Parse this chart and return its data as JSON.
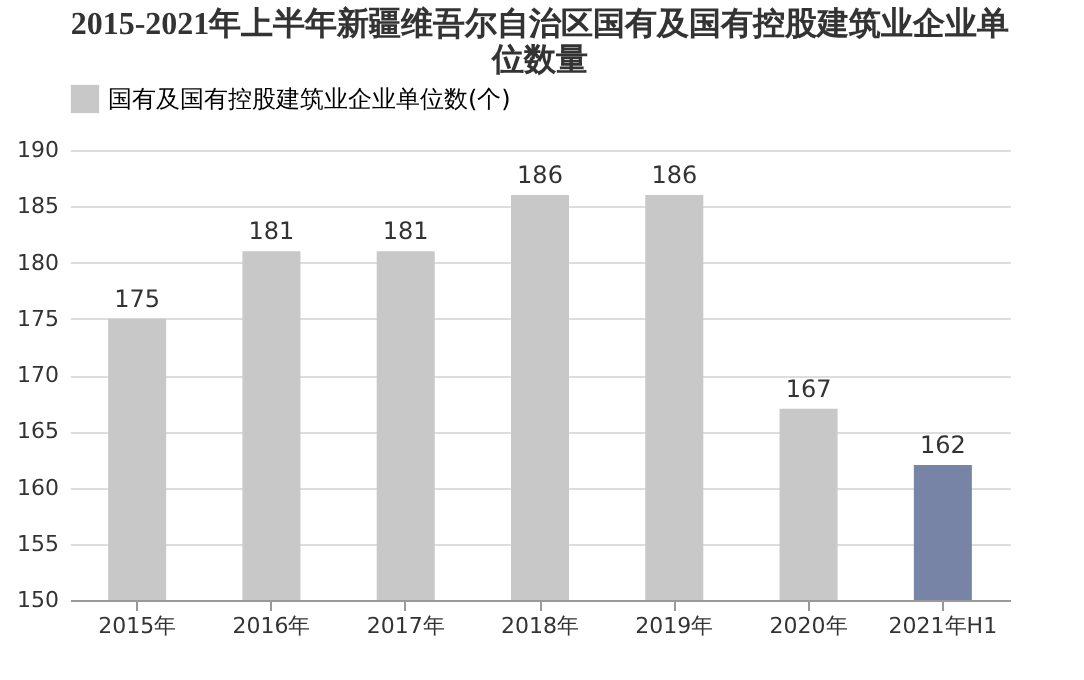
{
  "chart_data": {
    "type": "bar",
    "title": "2015-2021年上半年新疆维吾尔自治区国有及国有控股建筑业企业单位数量",
    "categories": [
      "2015年",
      "2016年",
      "2017年",
      "2018年",
      "2019年",
      "2020年",
      "2021年H1"
    ],
    "series": [
      {
        "name": "国有及国有控股建筑业企业单位数(个)",
        "color": "#c8c8c8",
        "values": [
          175,
          181,
          181,
          186,
          186,
          167,
          162
        ],
        "colors": [
          "#c8c8c8",
          "#c8c8c8",
          "#c8c8c8",
          "#c8c8c8",
          "#c8c8c8",
          "#c8c8c8",
          "#7884a6"
        ]
      }
    ],
    "ylim": [
      150,
      190
    ],
    "yticks": [
      150,
      155,
      160,
      165,
      170,
      175,
      180,
      185,
      190
    ],
    "grid": "y",
    "legend": "top",
    "data_labels": true
  }
}
